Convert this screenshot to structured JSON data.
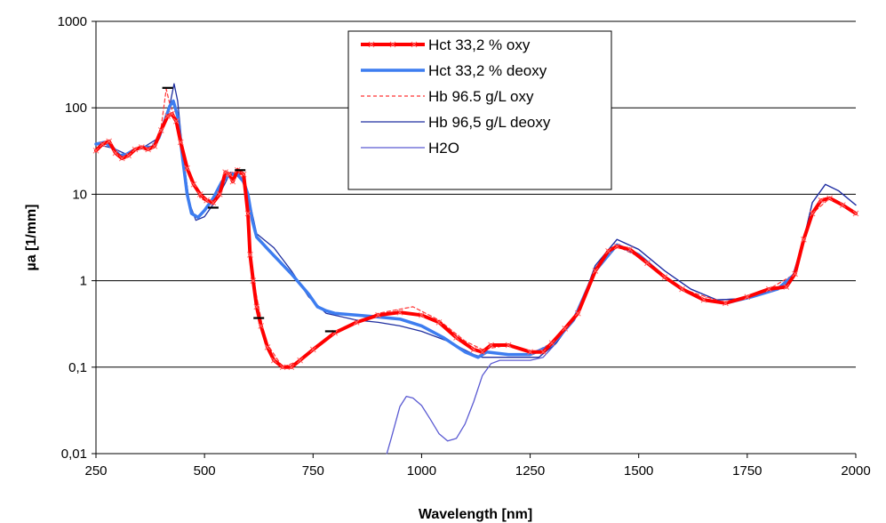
{
  "chart_data": {
    "type": "line",
    "title": "",
    "xlabel": "Wavelength [nm]",
    "ylabel": "µa [1/mm]",
    "xlim": [
      250,
      2000
    ],
    "ylim": [
      0.01,
      1000
    ],
    "y_scale": "log",
    "grid": "horizontal",
    "legend_position": "top-center",
    "x_ticks": [
      250,
      500,
      750,
      1000,
      1250,
      1500,
      1750,
      2000
    ],
    "x_tick_labels": [
      "250",
      "500",
      "750",
      "1000",
      "1250",
      "1500",
      "1750",
      "2000"
    ],
    "y_ticks": [
      0.01,
      0.1,
      1,
      10,
      100,
      1000
    ],
    "y_tick_labels": [
      "0,01",
      "0,1",
      "1",
      "10",
      "100",
      "1000"
    ],
    "series": [
      {
        "name": "Hct 33,2 % oxy",
        "color": "#ff0000",
        "style": "thick-marker",
        "points": [
          [
            250,
            32
          ],
          [
            265,
            38
          ],
          [
            280,
            41
          ],
          [
            295,
            30
          ],
          [
            310,
            26
          ],
          [
            325,
            28
          ],
          [
            340,
            33
          ],
          [
            355,
            35
          ],
          [
            370,
            33
          ],
          [
            385,
            36
          ],
          [
            400,
            55
          ],
          [
            415,
            80
          ],
          [
            425,
            85
          ],
          [
            435,
            70
          ],
          [
            445,
            40
          ],
          [
            460,
            20
          ],
          [
            475,
            13
          ],
          [
            490,
            10
          ],
          [
            505,
            8.5
          ],
          [
            520,
            8
          ],
          [
            535,
            10
          ],
          [
            548,
            18
          ],
          [
            558,
            17
          ],
          [
            565,
            14
          ],
          [
            576,
            19
          ],
          [
            590,
            17
          ],
          [
            600,
            6
          ],
          [
            605,
            2
          ],
          [
            612,
            1
          ],
          [
            620,
            0.5
          ],
          [
            630,
            0.3
          ],
          [
            645,
            0.17
          ],
          [
            660,
            0.12
          ],
          [
            680,
            0.1
          ],
          [
            700,
            0.1
          ],
          [
            720,
            0.12
          ],
          [
            750,
            0.16
          ],
          [
            800,
            0.25
          ],
          [
            850,
            0.33
          ],
          [
            900,
            0.4
          ],
          [
            950,
            0.43
          ],
          [
            1000,
            0.4
          ],
          [
            1040,
            0.33
          ],
          [
            1080,
            0.22
          ],
          [
            1120,
            0.16
          ],
          [
            1140,
            0.15
          ],
          [
            1160,
            0.18
          ],
          [
            1200,
            0.18
          ],
          [
            1250,
            0.15
          ],
          [
            1280,
            0.15
          ],
          [
            1300,
            0.19
          ],
          [
            1330,
            0.28
          ],
          [
            1360,
            0.42
          ],
          [
            1400,
            1.3
          ],
          [
            1430,
            2.2
          ],
          [
            1450,
            2.5
          ],
          [
            1480,
            2.3
          ],
          [
            1520,
            1.6
          ],
          [
            1560,
            1.1
          ],
          [
            1600,
            0.8
          ],
          [
            1650,
            0.6
          ],
          [
            1700,
            0.55
          ],
          [
            1750,
            0.65
          ],
          [
            1800,
            0.8
          ],
          [
            1840,
            0.85
          ],
          [
            1860,
            1.2
          ],
          [
            1880,
            3
          ],
          [
            1900,
            6
          ],
          [
            1920,
            8.5
          ],
          [
            1940,
            9
          ],
          [
            1970,
            7.5
          ],
          [
            2000,
            6
          ]
        ]
      },
      {
        "name": "Hct 33,2 % deoxy",
        "color": "#3d7df0",
        "style": "thick",
        "points": [
          [
            250,
            38
          ],
          [
            270,
            40
          ],
          [
            290,
            34
          ],
          [
            305,
            28
          ],
          [
            320,
            29
          ],
          [
            340,
            33
          ],
          [
            360,
            35
          ],
          [
            380,
            35
          ],
          [
            395,
            45
          ],
          [
            410,
            75
          ],
          [
            420,
            105
          ],
          [
            428,
            120
          ],
          [
            438,
            80
          ],
          [
            450,
            25
          ],
          [
            460,
            10
          ],
          [
            470,
            6
          ],
          [
            485,
            5.4
          ],
          [
            500,
            6.5
          ],
          [
            520,
            9
          ],
          [
            540,
            14
          ],
          [
            560,
            17
          ],
          [
            575,
            17
          ],
          [
            590,
            14
          ],
          [
            600,
            10
          ],
          [
            610,
            5
          ],
          [
            620,
            3.2
          ],
          [
            650,
            2.2
          ],
          [
            700,
            1.2
          ],
          [
            740,
            0.7
          ],
          [
            760,
            0.5
          ],
          [
            780,
            0.45
          ],
          [
            800,
            0.42
          ],
          [
            850,
            0.4
          ],
          [
            900,
            0.38
          ],
          [
            950,
            0.36
          ],
          [
            1000,
            0.3
          ],
          [
            1050,
            0.22
          ],
          [
            1100,
            0.15
          ],
          [
            1130,
            0.13
          ],
          [
            1150,
            0.15
          ],
          [
            1200,
            0.14
          ],
          [
            1250,
            0.14
          ],
          [
            1300,
            0.18
          ],
          [
            1350,
            0.35
          ],
          [
            1400,
            1.3
          ],
          [
            1450,
            2.6
          ],
          [
            1500,
            2
          ],
          [
            1560,
            1.1
          ],
          [
            1600,
            0.8
          ],
          [
            1650,
            0.6
          ],
          [
            1700,
            0.55
          ],
          [
            1760,
            0.65
          ],
          [
            1820,
            0.8
          ],
          [
            1860,
            1.2
          ],
          [
            1880,
            3
          ],
          [
            1900,
            6
          ],
          [
            1920,
            8.5
          ],
          [
            1940,
            9
          ],
          [
            1970,
            7.5
          ],
          [
            2000,
            6
          ]
        ]
      },
      {
        "name": "Hb 96.5 g/L oxy",
        "color": "#ff3333",
        "style": "thin-dashed",
        "points": [
          [
            250,
            32
          ],
          [
            280,
            41
          ],
          [
            310,
            26
          ],
          [
            355,
            35
          ],
          [
            385,
            36
          ],
          [
            400,
            60
          ],
          [
            412,
            165
          ],
          [
            420,
            110
          ],
          [
            435,
            70
          ],
          [
            460,
            20
          ],
          [
            490,
            9
          ],
          [
            520,
            7.5
          ],
          [
            548,
            18
          ],
          [
            560,
            16
          ],
          [
            576,
            20
          ],
          [
            595,
            12
          ],
          [
            610,
            1.2
          ],
          [
            640,
            0.2
          ],
          [
            680,
            0.1
          ],
          [
            720,
            0.12
          ],
          [
            800,
            0.26
          ],
          [
            900,
            0.42
          ],
          [
            980,
            0.5
          ],
          [
            1040,
            0.35
          ],
          [
            1100,
            0.2
          ],
          [
            1140,
            0.16
          ],
          [
            1200,
            0.18
          ],
          [
            1260,
            0.15
          ],
          [
            1300,
            0.19
          ],
          [
            1360,
            0.42
          ],
          [
            1400,
            1.3
          ],
          [
            1450,
            2.5
          ],
          [
            1500,
            1.9
          ],
          [
            1600,
            0.8
          ],
          [
            1700,
            0.55
          ],
          [
            1800,
            0.8
          ],
          [
            1860,
            1.2
          ],
          [
            1900,
            6
          ],
          [
            1940,
            9
          ],
          [
            2000,
            6
          ]
        ]
      },
      {
        "name": "Hb 96,5 g/L deoxy",
        "color": "#1f2fa0",
        "style": "thin",
        "points": [
          [
            250,
            38
          ],
          [
            290,
            34
          ],
          [
            320,
            29
          ],
          [
            360,
            35
          ],
          [
            395,
            45
          ],
          [
            415,
            80
          ],
          [
            430,
            190
          ],
          [
            438,
            120
          ],
          [
            450,
            30
          ],
          [
            465,
            8
          ],
          [
            480,
            5
          ],
          [
            500,
            5.5
          ],
          [
            530,
            9
          ],
          [
            560,
            18
          ],
          [
            580,
            17
          ],
          [
            600,
            10
          ],
          [
            620,
            3.5
          ],
          [
            660,
            2.4
          ],
          [
            700,
            1.3
          ],
          [
            740,
            0.65
          ],
          [
            780,
            0.42
          ],
          [
            850,
            0.35
          ],
          [
            900,
            0.33
          ],
          [
            950,
            0.3
          ],
          [
            1000,
            0.26
          ],
          [
            1060,
            0.2
          ],
          [
            1120,
            0.14
          ],
          [
            1140,
            0.13
          ],
          [
            1200,
            0.13
          ],
          [
            1270,
            0.13
          ],
          [
            1310,
            0.19
          ],
          [
            1360,
            0.42
          ],
          [
            1400,
            1.5
          ],
          [
            1450,
            3
          ],
          [
            1500,
            2.3
          ],
          [
            1560,
            1.3
          ],
          [
            1620,
            0.8
          ],
          [
            1680,
            0.6
          ],
          [
            1740,
            0.62
          ],
          [
            1800,
            0.75
          ],
          [
            1850,
            0.95
          ],
          [
            1880,
            3
          ],
          [
            1900,
            8
          ],
          [
            1930,
            13
          ],
          [
            1960,
            11
          ],
          [
            2000,
            7.5
          ]
        ]
      },
      {
        "name": "H2O",
        "color": "#5a5ad2",
        "style": "thin",
        "points": [
          [
            920,
            0.01
          ],
          [
            930,
            0.015
          ],
          [
            950,
            0.035
          ],
          [
            965,
            0.046
          ],
          [
            980,
            0.044
          ],
          [
            1000,
            0.036
          ],
          [
            1020,
            0.025
          ],
          [
            1040,
            0.017
          ],
          [
            1060,
            0.014
          ],
          [
            1080,
            0.015
          ],
          [
            1100,
            0.022
          ],
          [
            1120,
            0.04
          ],
          [
            1140,
            0.08
          ],
          [
            1160,
            0.11
          ],
          [
            1180,
            0.12
          ],
          [
            1200,
            0.12
          ],
          [
            1250,
            0.12
          ],
          [
            1280,
            0.13
          ],
          [
            1310,
            0.19
          ],
          [
            1360,
            0.42
          ],
          [
            1400,
            1.5
          ],
          [
            1450,
            3
          ],
          [
            1500,
            2.3
          ],
          [
            1560,
            1.3
          ],
          [
            1620,
            0.8
          ],
          [
            1680,
            0.6
          ],
          [
            1740,
            0.62
          ],
          [
            1800,
            0.75
          ],
          [
            1850,
            0.95
          ],
          [
            1880,
            3
          ],
          [
            1900,
            8
          ],
          [
            1930,
            13
          ],
          [
            1960,
            11
          ],
          [
            2000,
            7.5
          ]
        ]
      }
    ],
    "annotations": [
      {
        "type": "error-bar",
        "x": 415,
        "y": 170
      },
      {
        "type": "error-bar",
        "x": 520,
        "y": 7
      },
      {
        "type": "error-bar",
        "x": 582,
        "y": 19
      },
      {
        "type": "error-bar",
        "x": 625,
        "y": 0.37
      },
      {
        "type": "error-bar",
        "x": 790,
        "y": 0.26
      }
    ]
  }
}
